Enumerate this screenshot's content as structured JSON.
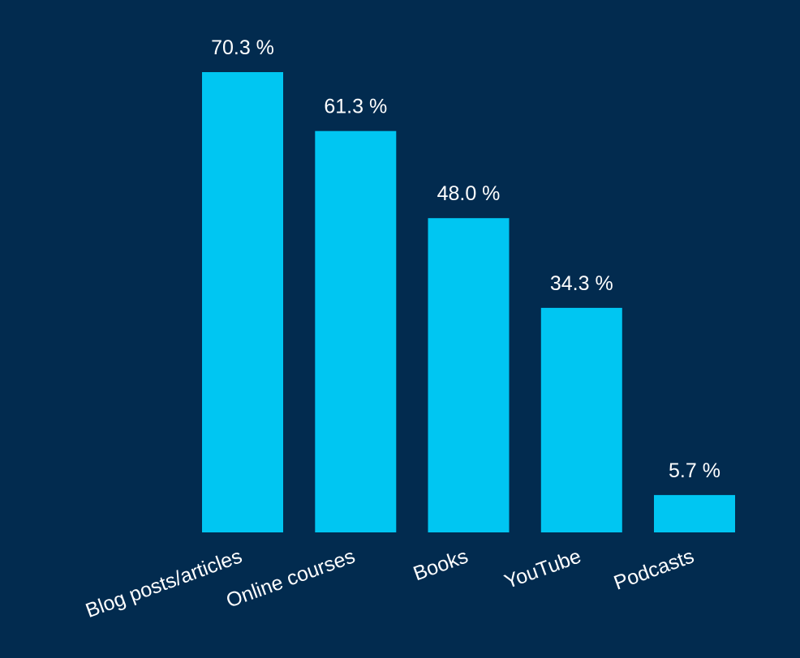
{
  "chart_data": {
    "type": "bar",
    "categories": [
      "Blog posts/articles",
      "Online courses",
      "Books",
      "YouTube",
      "Podcasts"
    ],
    "values": [
      70.3,
      61.3,
      48.0,
      34.3,
      5.7
    ],
    "value_labels": [
      "70.3 %",
      "61.3 %",
      "48.0 %",
      "34.3 %",
      "5.7 %"
    ],
    "unit": "%",
    "title": "",
    "xlabel": "",
    "ylabel": "",
    "ylim": [
      0,
      70.3
    ],
    "grid": false,
    "legend": "none",
    "category_label_rotation_deg": -20
  },
  "colors": {
    "background": "#022b4f",
    "bar": "#00c6f2",
    "text": "#ffffff"
  }
}
